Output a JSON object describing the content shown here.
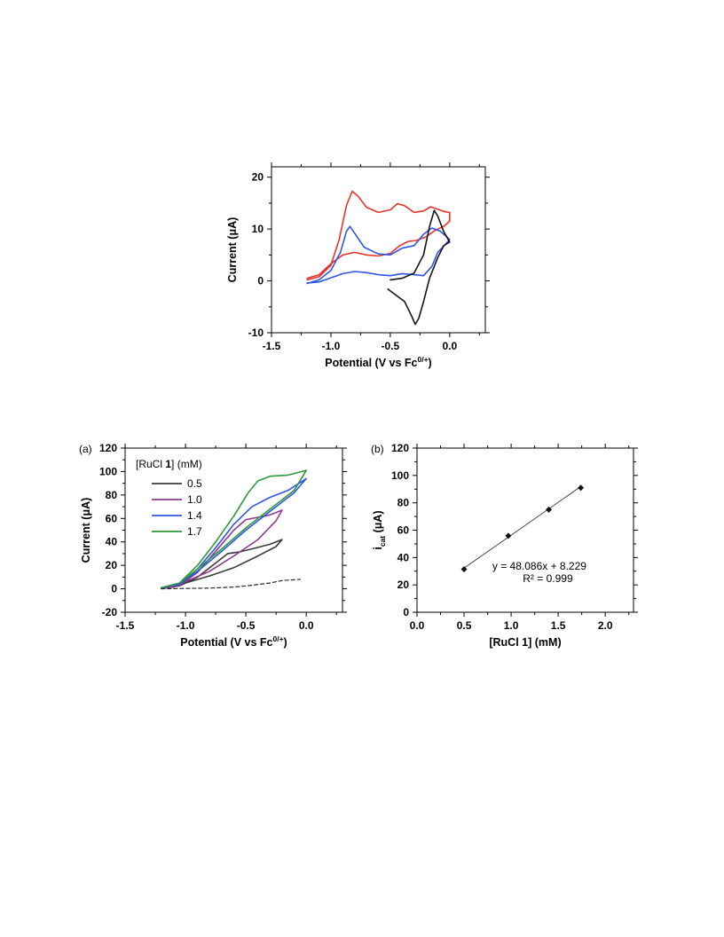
{
  "chart_data": [
    {
      "id": "top",
      "type": "line",
      "xlabel": "Potential (V vs Fc",
      "xlabel_sup": "0/+",
      "xlabel_end": ")",
      "ylabel": "Current (μA)",
      "xlim": [
        -1.5,
        0.3
      ],
      "ylim": [
        -10,
        22
      ],
      "xticks": [
        "-1.5",
        "-1.0",
        "-0.5",
        "0.0"
      ],
      "yticks": [
        "-10",
        "0",
        "10",
        "20"
      ],
      "xtick_values": [
        -1.5,
        -1.0,
        -0.5,
        0.0
      ],
      "ytick_values": [
        -10,
        0,
        10,
        20
      ],
      "series": [
        {
          "color": "#e8342b",
          "points": [
            [
              -1.2,
              0.2
            ],
            [
              -1.1,
              0.8
            ],
            [
              -1.0,
              3.0
            ],
            [
              -0.93,
              8.0
            ],
            [
              -0.87,
              14.5
            ],
            [
              -0.82,
              17.3
            ],
            [
              -0.77,
              16.3
            ],
            [
              -0.7,
              14.2
            ],
            [
              -0.6,
              13.2
            ],
            [
              -0.5,
              13.7
            ],
            [
              -0.44,
              14.9
            ],
            [
              -0.38,
              14.5
            ],
            [
              -0.3,
              13.2
            ],
            [
              -0.22,
              13.5
            ],
            [
              -0.16,
              14.3
            ],
            [
              -0.1,
              13.8
            ],
            [
              -0.05,
              13.4
            ],
            [
              0.0,
              13.2
            ],
            [
              0.0,
              11.5
            ],
            [
              -0.05,
              10.5
            ],
            [
              -0.12,
              9.8
            ],
            [
              -0.2,
              8.5
            ],
            [
              -0.28,
              7.8
            ],
            [
              -0.35,
              7.6
            ],
            [
              -0.42,
              6.8
            ],
            [
              -0.5,
              5.3
            ],
            [
              -0.6,
              4.8
            ],
            [
              -0.7,
              5.0
            ],
            [
              -0.8,
              5.5
            ],
            [
              -0.9,
              5.0
            ],
            [
              -1.0,
              3.3
            ],
            [
              -1.1,
              1.2
            ],
            [
              -1.2,
              0.5
            ]
          ]
        },
        {
          "color": "#2f55e6",
          "points": [
            [
              -1.2,
              -0.5
            ],
            [
              -1.1,
              0.2
            ],
            [
              -1.0,
              2.0
            ],
            [
              -0.92,
              5.5
            ],
            [
              -0.87,
              9.5
            ],
            [
              -0.84,
              10.5
            ],
            [
              -0.8,
              9.2
            ],
            [
              -0.72,
              6.5
            ],
            [
              -0.6,
              5.2
            ],
            [
              -0.5,
              5.0
            ],
            [
              -0.4,
              6.3
            ],
            [
              -0.3,
              6.8
            ],
            [
              -0.22,
              9.0
            ],
            [
              -0.15,
              10.2
            ],
            [
              -0.08,
              9.6
            ],
            [
              -0.03,
              8.6
            ],
            [
              0.0,
              8.0
            ],
            [
              -0.03,
              7.2
            ],
            [
              -0.1,
              5.5
            ],
            [
              -0.15,
              2.8
            ],
            [
              -0.22,
              1.0
            ],
            [
              -0.3,
              1.2
            ],
            [
              -0.4,
              1.4
            ],
            [
              -0.5,
              1.0
            ],
            [
              -0.6,
              1.2
            ],
            [
              -0.7,
              1.6
            ],
            [
              -0.8,
              1.8
            ],
            [
              -0.9,
              1.4
            ],
            [
              -1.0,
              0.6
            ],
            [
              -1.1,
              -0.2
            ],
            [
              -1.2,
              -0.4
            ]
          ]
        },
        {
          "color": "#141414",
          "points": [
            [
              -0.5,
              0.2
            ],
            [
              -0.4,
              0.5
            ],
            [
              -0.3,
              1.5
            ],
            [
              -0.22,
              5.0
            ],
            [
              -0.17,
              10.5
            ],
            [
              -0.13,
              13.6
            ],
            [
              -0.1,
              12.5
            ],
            [
              -0.05,
              9.5
            ],
            [
              0.0,
              7.5
            ],
            [
              -0.05,
              6.8
            ],
            [
              -0.1,
              4.5
            ],
            [
              -0.17,
              0.5
            ],
            [
              -0.22,
              -4.0
            ],
            [
              -0.26,
              -7.2
            ],
            [
              -0.29,
              -8.4
            ],
            [
              -0.32,
              -6.8
            ],
            [
              -0.38,
              -4.0
            ],
            [
              -0.45,
              -2.8
            ],
            [
              -0.52,
              -1.6
            ]
          ]
        }
      ]
    },
    {
      "id": "a",
      "panel_label": "(a)",
      "type": "line",
      "xlabel": "Potential (V vs Fc",
      "xlabel_sup": "0/+",
      "xlabel_end": ")",
      "ylabel": "Current (μA)",
      "xlim": [
        -1.5,
        0.3
      ],
      "ylim": [
        -20,
        120
      ],
      "xticks": [
        "-1.5",
        "-1.0",
        "-0.5",
        "0.0"
      ],
      "yticks": [
        "-20",
        "0",
        "20",
        "40",
        "60",
        "80",
        "100",
        "120"
      ],
      "xtick_values": [
        -1.5,
        -1.0,
        -0.5,
        0.0
      ],
      "ytick_values": [
        -20,
        0,
        20,
        40,
        60,
        80,
        100,
        120
      ],
      "legend_title_pre": "[RuCl ",
      "legend_title_bold": "1",
      "legend_title_post": "] (mM)",
      "legend_placement": "top-left",
      "series": [
        {
          "name": "0.5",
          "color": "#3a3a3a",
          "points": [
            [
              -1.2,
              0.5
            ],
            [
              -1.05,
              2.5
            ],
            [
              -0.9,
              10.0
            ],
            [
              -0.75,
              22.0
            ],
            [
              -0.65,
              30.0
            ],
            [
              -0.55,
              31.5
            ],
            [
              -0.45,
              34.0
            ],
            [
              -0.3,
              38.0
            ],
            [
              -0.2,
              42.0
            ],
            [
              -0.25,
              36.0
            ],
            [
              -0.4,
              28.0
            ],
            [
              -0.6,
              18.0
            ],
            [
              -0.8,
              11.0
            ],
            [
              -1.0,
              5.0
            ],
            [
              -1.1,
              1.5
            ],
            [
              -1.2,
              0.5
            ]
          ]
        },
        {
          "name": "1.0",
          "color": "#8e3a8e",
          "points": [
            [
              -1.2,
              0.5
            ],
            [
              -1.05,
              3.0
            ],
            [
              -0.9,
              14.0
            ],
            [
              -0.75,
              32.0
            ],
            [
              -0.6,
              50.0
            ],
            [
              -0.5,
              59.0
            ],
            [
              -0.4,
              61.0
            ],
            [
              -0.3,
              63.0
            ],
            [
              -0.2,
              67.0
            ],
            [
              -0.25,
              58.0
            ],
            [
              -0.4,
              42.0
            ],
            [
              -0.6,
              28.0
            ],
            [
              -0.8,
              15.0
            ],
            [
              -1.0,
              6.0
            ],
            [
              -1.1,
              2.0
            ],
            [
              -1.2,
              0.5
            ]
          ]
        },
        {
          "name": "1.4",
          "color": "#2f55e6",
          "points": [
            [
              -1.2,
              1.0
            ],
            [
              -1.05,
              4.0
            ],
            [
              -0.9,
              17.0
            ],
            [
              -0.75,
              35.0
            ],
            [
              -0.6,
              55.0
            ],
            [
              -0.45,
              70.0
            ],
            [
              -0.3,
              78.0
            ],
            [
              -0.15,
              84.0
            ],
            [
              0.0,
              94.0
            ],
            [
              -0.1,
              82.0
            ],
            [
              -0.3,
              66.0
            ],
            [
              -0.5,
              50.0
            ],
            [
              -0.7,
              32.0
            ],
            [
              -0.9,
              15.0
            ],
            [
              -1.05,
              4.0
            ],
            [
              -1.2,
              1.0
            ]
          ]
        },
        {
          "name": "1.7",
          "color": "#2e9a3c",
          "points": [
            [
              -1.2,
              1.0
            ],
            [
              -1.05,
              5.0
            ],
            [
              -0.9,
              20.0
            ],
            [
              -0.75,
              40.0
            ],
            [
              -0.6,
              62.0
            ],
            [
              -0.48,
              82.0
            ],
            [
              -0.4,
              92.0
            ],
            [
              -0.3,
              96.0
            ],
            [
              -0.15,
              97.0
            ],
            [
              0.0,
              101.0
            ],
            [
              -0.1,
              84.0
            ],
            [
              -0.3,
              68.0
            ],
            [
              -0.5,
              52.0
            ],
            [
              -0.7,
              34.0
            ],
            [
              -0.9,
              17.0
            ],
            [
              -1.05,
              5.0
            ],
            [
              -1.2,
              1.0
            ]
          ]
        },
        {
          "name": "",
          "color": "#2a2a2a",
          "dashed": true,
          "points": [
            [
              -1.2,
              0.0
            ],
            [
              -1.0,
              0.3
            ],
            [
              -0.8,
              0.6
            ],
            [
              -0.6,
              1.5
            ],
            [
              -0.45,
              3.0
            ],
            [
              -0.3,
              5.0
            ],
            [
              -0.2,
              7.0
            ],
            [
              -0.05,
              8.0
            ]
          ]
        }
      ]
    },
    {
      "id": "b",
      "panel_label": "(b)",
      "type": "scatter",
      "xlabel_pre": "[RuCl ",
      "xlabel_bold": "1",
      "xlabel_post": "] (mM)",
      "ylabel": "i",
      "ylabel_sub": "cat",
      "ylabel_end": " (μA)",
      "xlim": [
        0.0,
        2.3
      ],
      "ylim": [
        0,
        120
      ],
      "xticks": [
        "0.0",
        "0.5",
        "1.0",
        "1.5",
        "2.0"
      ],
      "yticks": [
        "0",
        "20",
        "40",
        "60",
        "80",
        "100",
        "120"
      ],
      "xtick_values": [
        0.0,
        0.5,
        1.0,
        1.5,
        2.0
      ],
      "ytick_values": [
        0,
        20,
        40,
        60,
        80,
        100,
        120
      ],
      "points": [
        [
          0.5,
          31.5
        ],
        [
          0.97,
          55.9
        ],
        [
          1.4,
          75.0
        ],
        [
          1.74,
          91.0
        ]
      ],
      "trendline": {
        "slope": 48.086,
        "intercept": 8.229,
        "x_range": [
          0.5,
          1.74
        ]
      },
      "equation": "y = 48.086x + 8.229",
      "r_squared": "R² = 0.999"
    }
  ]
}
